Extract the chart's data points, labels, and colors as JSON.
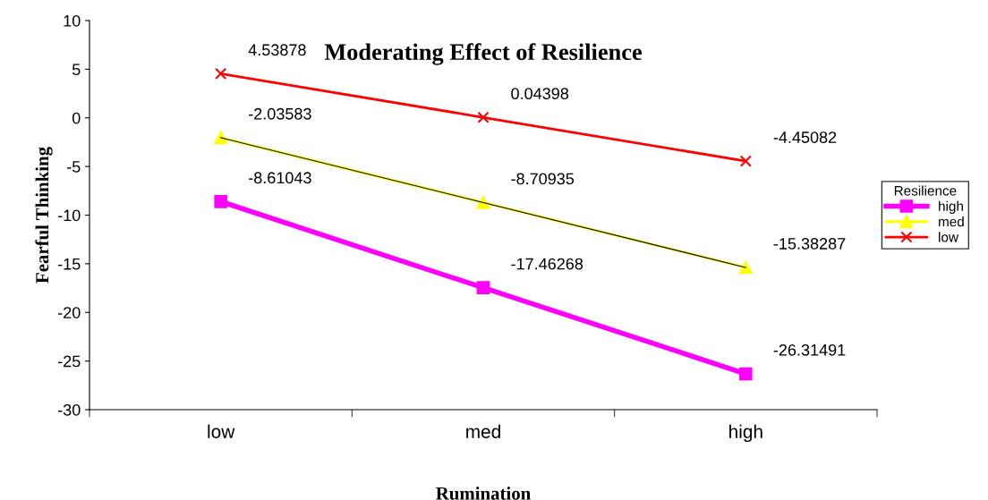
{
  "chart_data": {
    "type": "line",
    "title": "Moderating Effect of Resilience",
    "xlabel": "Rumination",
    "ylabel": "Fearful Thinking",
    "categories": [
      "low",
      "med",
      "high"
    ],
    "series": [
      {
        "name": "high",
        "color": "#ff00ff",
        "marker": "square",
        "values": [
          -8.61043,
          -17.46268,
          -26.31491
        ]
      },
      {
        "name": "med",
        "color": "#ffff00",
        "marker": "triangle",
        "values": [
          -2.03583,
          -8.70935,
          -15.38287
        ]
      },
      {
        "name": "low",
        "color": "#ff0000",
        "marker": "cross",
        "values": [
          4.53878,
          0.04398,
          -4.45082
        ]
      }
    ],
    "ylim": [
      -30,
      10
    ],
    "yticks": [
      -30,
      -25,
      -20,
      -15,
      -10,
      -5,
      0,
      5,
      10
    ],
    "data_labels": true,
    "grid": false,
    "legend": "right",
    "legend_title": "Resilience"
  }
}
